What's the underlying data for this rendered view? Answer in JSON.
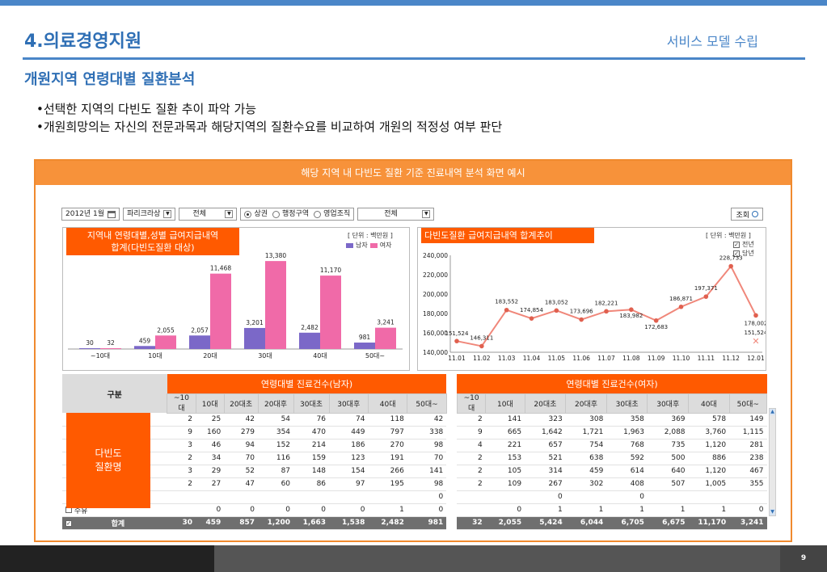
{
  "header": {
    "section_title": "4.의료경영지원",
    "section_subtitle": "서비스 모델 수립",
    "page_heading": "개원지역 연령대별 질환분석",
    "bullets": [
      "•선택한 지역의 다빈도 질환 추이 파악 가능",
      "•개원희망의는 자신의 전문과목과 해당지역의 질환수요를 비교하여 개원의 적정성 여부 판단"
    ]
  },
  "panel": {
    "title": "해당 지역 내 다빈도 질환 기준 진료내역 분석 화면 예시",
    "toolbar": {
      "month": "2012년 1월",
      "calendar_icon": "calendar-icon",
      "region": "파리크라상",
      "filter1": "전체",
      "radio_options": [
        "상권",
        "행정구역",
        "영업조직"
      ],
      "radio_selected": 0,
      "filter2": "전체",
      "search_label": "조회",
      "search_icon": "magnifier-icon"
    },
    "bar_chart": {
      "title_line1": "지역내 연령대별,성별 급여지급내역",
      "title_line2": "합계(다빈도질환 대상)",
      "unit": "[ 단위 : 백만원 ]",
      "legend_male": "남자",
      "legend_female": "여자",
      "male_color": "#7b68c8",
      "female_color": "#f06aa8"
    },
    "line_chart": {
      "title": "다빈도질환 급여지급내역 합계추이",
      "unit": "[ 단위 : 백만원 ]",
      "legend_prev": "전년",
      "legend_curr": "당년"
    },
    "table": {
      "male_group": "연령대별 진료건수(남자)",
      "female_group": "연령대별 진료건수(여자)",
      "gubun": "구분",
      "columns": [
        "~10대",
        "10대",
        "20대초",
        "20대후",
        "30대초",
        "30대후",
        "40대",
        "50대~"
      ],
      "disease_label_1": "다빈도",
      "disease_label_2": "질환명",
      "rows": [
        {
          "m": [
            "2",
            "25",
            "42",
            "54",
            "76",
            "74",
            "118",
            "42"
          ],
          "f": [
            "2",
            "141",
            "323",
            "308",
            "358",
            "369",
            "578",
            "149"
          ]
        },
        {
          "m": [
            "9",
            "160",
            "279",
            "354",
            "470",
            "449",
            "797",
            "338"
          ],
          "f": [
            "9",
            "665",
            "1,642",
            "1,721",
            "1,963",
            "2,088",
            "3,760",
            "1,115"
          ]
        },
        {
          "m": [
            "3",
            "46",
            "94",
            "152",
            "214",
            "186",
            "270",
            "98"
          ],
          "f": [
            "4",
            "221",
            "657",
            "754",
            "768",
            "735",
            "1,120",
            "281"
          ]
        },
        {
          "m": [
            "2",
            "34",
            "70",
            "116",
            "159",
            "123",
            "191",
            "70"
          ],
          "f": [
            "2",
            "153",
            "521",
            "638",
            "592",
            "500",
            "886",
            "238"
          ]
        },
        {
          "m": [
            "3",
            "29",
            "52",
            "87",
            "148",
            "154",
            "266",
            "141"
          ],
          "f": [
            "2",
            "105",
            "314",
            "459",
            "614",
            "640",
            "1,120",
            "467"
          ]
        },
        {
          "m": [
            "2",
            "27",
            "47",
            "60",
            "86",
            "97",
            "195",
            "98"
          ],
          "f": [
            "2",
            "109",
            "267",
            "302",
            "408",
            "507",
            "1,005",
            "355"
          ]
        },
        {
          "m": [
            "",
            "",
            "",
            "",
            "",
            "",
            "",
            "0"
          ],
          "f": [
            "",
            "",
            "0",
            "",
            "0",
            "",
            "",
            ""
          ]
        },
        {
          "label": "수유",
          "m": [
            "",
            "0",
            "0",
            "0",
            "0",
            "0",
            "1",
            "0"
          ],
          "f": [
            "",
            "0",
            "1",
            "1",
            "1",
            "1",
            "1",
            "0"
          ]
        }
      ],
      "total_label": "합계",
      "total_m": [
        "30",
        "459",
        "857",
        "1,200",
        "1,663",
        "1,538",
        "2,482",
        "981"
      ],
      "total_f": [
        "32",
        "2,055",
        "5,424",
        "6,044",
        "6,705",
        "6,675",
        "11,170",
        "3,241"
      ]
    }
  },
  "footer": {
    "page_number": "9"
  },
  "chart_data": [
    {
      "type": "bar",
      "title": "지역내 연령대별,성별 급여지급내역 합계(다빈도질환 대상)",
      "categories": [
        "~10대",
        "10대",
        "20대",
        "30대",
        "40대",
        "50대~"
      ],
      "series": [
        {
          "name": "남자",
          "values": [
            30,
            459,
            2057,
            3201,
            2482,
            981
          ]
        },
        {
          "name": "여자",
          "values": [
            32,
            2055,
            11468,
            13380,
            11170,
            3241
          ]
        }
      ],
      "ylim": [
        0,
        14500
      ]
    },
    {
      "type": "line",
      "title": "다빈도질환 급여지급내역 합계추이",
      "categories": [
        "11.01",
        "11.02",
        "11.03",
        "11.04",
        "11.05",
        "11.06",
        "11.07",
        "11.08",
        "11.09",
        "11.10",
        "11.11",
        "11.12",
        "12.01"
      ],
      "yticks": [
        "140,000",
        "160,000",
        "180,000",
        "200,000",
        "220,000",
        "240,000"
      ],
      "ylim": [
        140000,
        240000
      ],
      "series": [
        {
          "name": "전년",
          "values": [
            151524,
            146311,
            183552,
            174854,
            183052,
            173696,
            182221,
            183982,
            172683,
            186871,
            197371,
            228733,
            178002
          ]
        },
        {
          "name": "당년",
          "values": [
            null,
            null,
            null,
            null,
            null,
            null,
            null,
            null,
            null,
            null,
            null,
            null,
            151524
          ]
        }
      ],
      "labels": [
        "151,524",
        "146,311",
        "183,552",
        "174,854",
        "183,052",
        "173,696",
        "182,221",
        "183,982",
        "172,683",
        "186,871",
        "197,371",
        "228,733",
        "178,002"
      ],
      "current_label": "151,524"
    }
  ]
}
